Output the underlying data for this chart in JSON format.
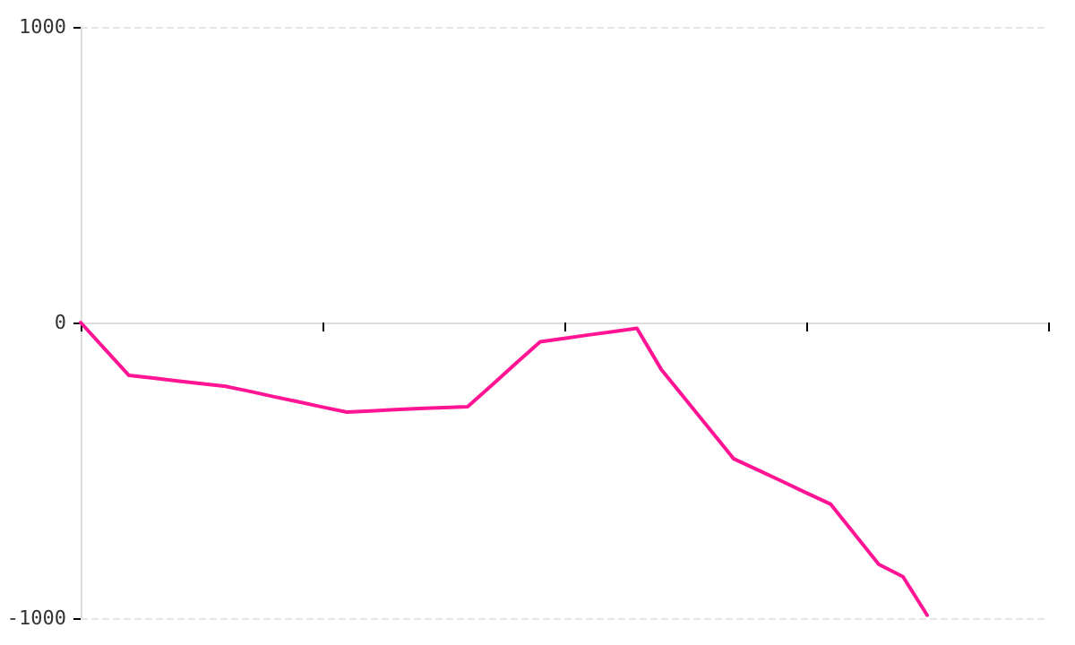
{
  "chart_data": {
    "type": "line",
    "categories": [
      null,
      null,
      null,
      null,
      null,
      null,
      null,
      null,
      null,
      null,
      null,
      null,
      null,
      null,
      null,
      null,
      null,
      null,
      null,
      null,
      null,
      null,
      null,
      null,
      null,
      null,
      null,
      null,
      null,
      null,
      null,
      null,
      null,
      null,
      null,
      null,
      null,
      null,
      null,
      null,
      null
    ],
    "series": [
      {
        "color": "#ff1493",
        "values": [
          0,
          -90,
          -179,
          -188,
          -198,
          -207,
          -216,
          -233,
          -251,
          -268,
          -286,
          -303,
          -299,
          -295,
          -291,
          -288,
          -285,
          -212,
          -138,
          -65,
          -54,
          -42,
          -31,
          -20,
          -158,
          -259,
          -360,
          -461,
          -499,
          -537,
          -576,
          -614,
          -716,
          -818,
          -860,
          -990,
          null,
          null,
          null,
          null,
          null
        ]
      }
    ],
    "ylim": [
      -1000,
      1000
    ],
    "yticks": [
      -1000,
      0,
      1000
    ],
    "tick_labels": "y",
    "grid": "y",
    "marker": "none",
    "line_style": "solid"
  }
}
